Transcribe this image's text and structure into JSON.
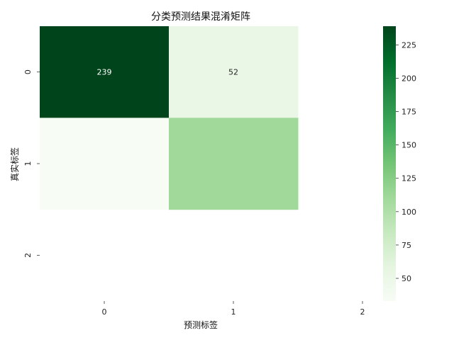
{
  "chart_data": {
    "type": "heatmap",
    "title": "分类预测结果混淆矩阵",
    "xlabel": "预测标签",
    "ylabel": "真实标签",
    "x_categories": [
      "0",
      "1",
      "2"
    ],
    "y_categories": [
      "0",
      "1",
      "2"
    ],
    "values": [
      [
        239,
        52,
        null
      ],
      [
        33,
        110,
        null
      ],
      [
        null,
        null,
        null
      ]
    ],
    "annotations": [
      [
        "239",
        "52",
        ""
      ],
      [
        "",
        "",
        ""
      ],
      [
        "",
        "",
        ""
      ]
    ],
    "colormap": "Greens",
    "color_low": "#f7fcf5",
    "color_high": "#00441b",
    "vmin": 33,
    "vmax": 239,
    "colorbar_ticks": [
      50,
      75,
      100,
      125,
      150,
      175,
      200,
      225
    ],
    "colorbar_labels": [
      "50",
      "75",
      "100",
      "125",
      "150",
      "175",
      "200",
      "225"
    ]
  }
}
